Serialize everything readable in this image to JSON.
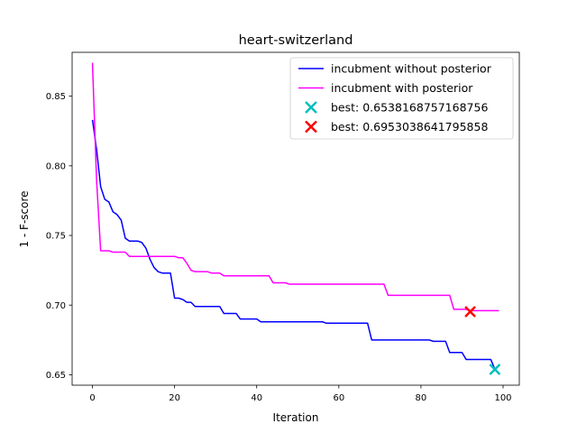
{
  "chart_data": {
    "type": "line",
    "title": "heart-switzerland",
    "xlabel": "Iteration",
    "ylabel": "1 - F-score",
    "xlim": [
      -4.95,
      103.95
    ],
    "ylim": [
      0.6425,
      0.8815
    ],
    "xticks": [
      0,
      20,
      40,
      60,
      80,
      100
    ],
    "xtick_labels": [
      "0",
      "20",
      "40",
      "60",
      "80",
      "100"
    ],
    "yticks": [
      0.65,
      0.7,
      0.75,
      0.8,
      0.85
    ],
    "ytick_labels": [
      "0.65",
      "0.70",
      "0.75",
      "0.80",
      "0.85"
    ],
    "grid": false,
    "legend_position": "upper right",
    "series": [
      {
        "name": "incubment without posterior",
        "color": "#0000ff",
        "points": [
          [
            0,
            0.833
          ],
          [
            1,
            0.812
          ],
          [
            2,
            0.785
          ],
          [
            3,
            0.776
          ],
          [
            4,
            0.774
          ],
          [
            5,
            0.767
          ],
          [
            6,
            0.765
          ],
          [
            7,
            0.761
          ],
          [
            8,
            0.748
          ],
          [
            9,
            0.746
          ],
          [
            10,
            0.746
          ],
          [
            11,
            0.746
          ],
          [
            12,
            0.745
          ],
          [
            13,
            0.741
          ],
          [
            14,
            0.733
          ],
          [
            15,
            0.727
          ],
          [
            16,
            0.724
          ],
          [
            17,
            0.723
          ],
          [
            18,
            0.723
          ],
          [
            19,
            0.723
          ],
          [
            20,
            0.705
          ],
          [
            21,
            0.705
          ],
          [
            22,
            0.704
          ],
          [
            23,
            0.702
          ],
          [
            24,
            0.702
          ],
          [
            25,
            0.699
          ],
          [
            26,
            0.699
          ],
          [
            27,
            0.699
          ],
          [
            28,
            0.699
          ],
          [
            29,
            0.699
          ],
          [
            30,
            0.699
          ],
          [
            31,
            0.699
          ],
          [
            32,
            0.694
          ],
          [
            33,
            0.694
          ],
          [
            34,
            0.694
          ],
          [
            35,
            0.694
          ],
          [
            36,
            0.69
          ],
          [
            37,
            0.69
          ],
          [
            38,
            0.69
          ],
          [
            39,
            0.69
          ],
          [
            40,
            0.69
          ],
          [
            41,
            0.688
          ],
          [
            42,
            0.688
          ],
          [
            43,
            0.688
          ],
          [
            44,
            0.688
          ],
          [
            45,
            0.688
          ],
          [
            46,
            0.688
          ],
          [
            47,
            0.688
          ],
          [
            48,
            0.688
          ],
          [
            49,
            0.688
          ],
          [
            50,
            0.688
          ],
          [
            51,
            0.688
          ],
          [
            52,
            0.688
          ],
          [
            53,
            0.688
          ],
          [
            54,
            0.688
          ],
          [
            55,
            0.688
          ],
          [
            56,
            0.688
          ],
          [
            57,
            0.687
          ],
          [
            58,
            0.687
          ],
          [
            59,
            0.687
          ],
          [
            60,
            0.687
          ],
          [
            61,
            0.687
          ],
          [
            62,
            0.687
          ],
          [
            63,
            0.687
          ],
          [
            64,
            0.687
          ],
          [
            65,
            0.687
          ],
          [
            66,
            0.687
          ],
          [
            67,
            0.687
          ],
          [
            68,
            0.675
          ],
          [
            69,
            0.675
          ],
          [
            70,
            0.675
          ],
          [
            71,
            0.675
          ],
          [
            72,
            0.675
          ],
          [
            73,
            0.675
          ],
          [
            74,
            0.675
          ],
          [
            75,
            0.675
          ],
          [
            76,
            0.675
          ],
          [
            77,
            0.675
          ],
          [
            78,
            0.675
          ],
          [
            79,
            0.675
          ],
          [
            80,
            0.675
          ],
          [
            81,
            0.675
          ],
          [
            82,
            0.675
          ],
          [
            83,
            0.674
          ],
          [
            84,
            0.674
          ],
          [
            85,
            0.674
          ],
          [
            86,
            0.674
          ],
          [
            87,
            0.666
          ],
          [
            88,
            0.666
          ],
          [
            89,
            0.666
          ],
          [
            90,
            0.666
          ],
          [
            91,
            0.661
          ],
          [
            92,
            0.661
          ],
          [
            93,
            0.661
          ],
          [
            94,
            0.661
          ],
          [
            95,
            0.661
          ],
          [
            96,
            0.661
          ],
          [
            97,
            0.661
          ],
          [
            98,
            0.654
          ]
        ]
      },
      {
        "name": "incubment with posterior",
        "color": "#ff00ff",
        "points": [
          [
            0,
            0.874
          ],
          [
            1,
            0.79
          ],
          [
            2,
            0.739
          ],
          [
            3,
            0.739
          ],
          [
            4,
            0.739
          ],
          [
            5,
            0.738
          ],
          [
            6,
            0.738
          ],
          [
            7,
            0.738
          ],
          [
            8,
            0.738
          ],
          [
            9,
            0.735
          ],
          [
            10,
            0.735
          ],
          [
            11,
            0.735
          ],
          [
            12,
            0.735
          ],
          [
            13,
            0.735
          ],
          [
            14,
            0.735
          ],
          [
            15,
            0.735
          ],
          [
            16,
            0.735
          ],
          [
            17,
            0.735
          ],
          [
            18,
            0.735
          ],
          [
            19,
            0.735
          ],
          [
            20,
            0.735
          ],
          [
            21,
            0.734
          ],
          [
            22,
            0.734
          ],
          [
            23,
            0.73
          ],
          [
            24,
            0.725
          ],
          [
            25,
            0.724
          ],
          [
            26,
            0.724
          ],
          [
            27,
            0.724
          ],
          [
            28,
            0.724
          ],
          [
            29,
            0.723
          ],
          [
            30,
            0.723
          ],
          [
            31,
            0.723
          ],
          [
            32,
            0.721
          ],
          [
            33,
            0.721
          ],
          [
            34,
            0.721
          ],
          [
            35,
            0.721
          ],
          [
            36,
            0.721
          ],
          [
            37,
            0.721
          ],
          [
            38,
            0.721
          ],
          [
            39,
            0.721
          ],
          [
            40,
            0.721
          ],
          [
            41,
            0.721
          ],
          [
            42,
            0.721
          ],
          [
            43,
            0.721
          ],
          [
            44,
            0.716
          ],
          [
            45,
            0.716
          ],
          [
            46,
            0.716
          ],
          [
            47,
            0.716
          ],
          [
            48,
            0.715
          ],
          [
            49,
            0.715
          ],
          [
            50,
            0.715
          ],
          [
            51,
            0.715
          ],
          [
            52,
            0.715
          ],
          [
            53,
            0.715
          ],
          [
            54,
            0.715
          ],
          [
            55,
            0.715
          ],
          [
            56,
            0.715
          ],
          [
            57,
            0.715
          ],
          [
            58,
            0.715
          ],
          [
            59,
            0.715
          ],
          [
            60,
            0.715
          ],
          [
            61,
            0.715
          ],
          [
            62,
            0.715
          ],
          [
            63,
            0.715
          ],
          [
            64,
            0.715
          ],
          [
            65,
            0.715
          ],
          [
            66,
            0.715
          ],
          [
            67,
            0.715
          ],
          [
            68,
            0.715
          ],
          [
            69,
            0.715
          ],
          [
            70,
            0.715
          ],
          [
            71,
            0.715
          ],
          [
            72,
            0.707
          ],
          [
            73,
            0.707
          ],
          [
            74,
            0.707
          ],
          [
            75,
            0.707
          ],
          [
            76,
            0.707
          ],
          [
            77,
            0.707
          ],
          [
            78,
            0.707
          ],
          [
            79,
            0.707
          ],
          [
            80,
            0.707
          ],
          [
            81,
            0.707
          ],
          [
            82,
            0.707
          ],
          [
            83,
            0.707
          ],
          [
            84,
            0.707
          ],
          [
            85,
            0.707
          ],
          [
            86,
            0.707
          ],
          [
            87,
            0.707
          ],
          [
            88,
            0.697
          ],
          [
            89,
            0.697
          ],
          [
            90,
            0.697
          ],
          [
            91,
            0.697
          ],
          [
            92,
            0.696
          ],
          [
            93,
            0.696
          ],
          [
            94,
            0.696
          ],
          [
            95,
            0.696
          ],
          [
            96,
            0.696
          ],
          [
            97,
            0.696
          ],
          [
            98,
            0.696
          ],
          [
            99,
            0.696
          ]
        ]
      }
    ],
    "markers": [
      {
        "name": "best: 0.6538168757168756",
        "x": 98,
        "y": 0.6538168757168756,
        "color": "#00bfbf",
        "shape": "x"
      },
      {
        "name": "best: 0.6953038641795858",
        "x": 92,
        "y": 0.6953038641795858,
        "color": "#ff0000",
        "shape": "x"
      }
    ]
  }
}
